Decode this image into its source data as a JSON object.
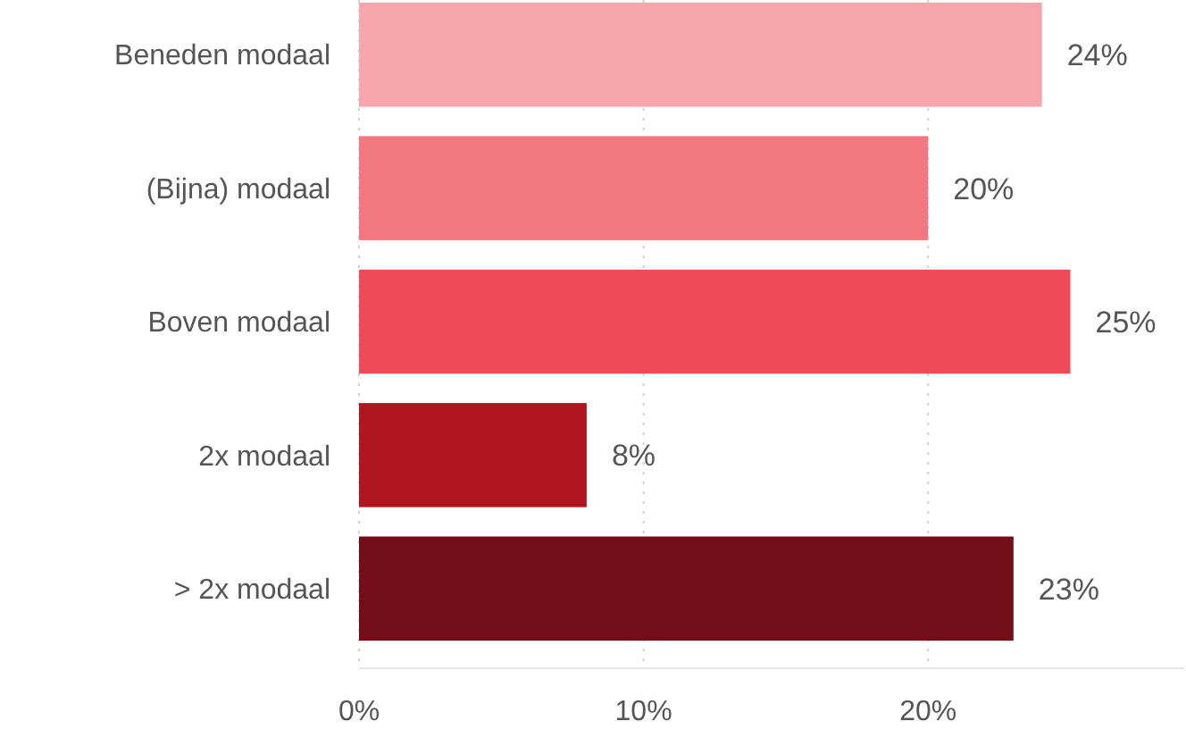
{
  "chart_data": {
    "type": "bar",
    "orientation": "horizontal",
    "categories": [
      "Beneden modaal",
      "(Bijna) modaal",
      "Boven modaal",
      "2x modaal",
      "> 2x modaal"
    ],
    "values": [
      24,
      20,
      25,
      8,
      23
    ],
    "colors": [
      "#f7a6ac",
      "#f2787f",
      "#ee4a59",
      "#b0161f",
      "#720e17"
    ],
    "value_labels": [
      "24%",
      "20%",
      "25%",
      "8%",
      "23%"
    ],
    "xlim": [
      0,
      29
    ],
    "xticks": [
      {
        "value": 0,
        "label": "0%"
      },
      {
        "value": 10,
        "label": "10%"
      },
      {
        "value": 20,
        "label": "20%"
      }
    ],
    "grid": "x"
  }
}
